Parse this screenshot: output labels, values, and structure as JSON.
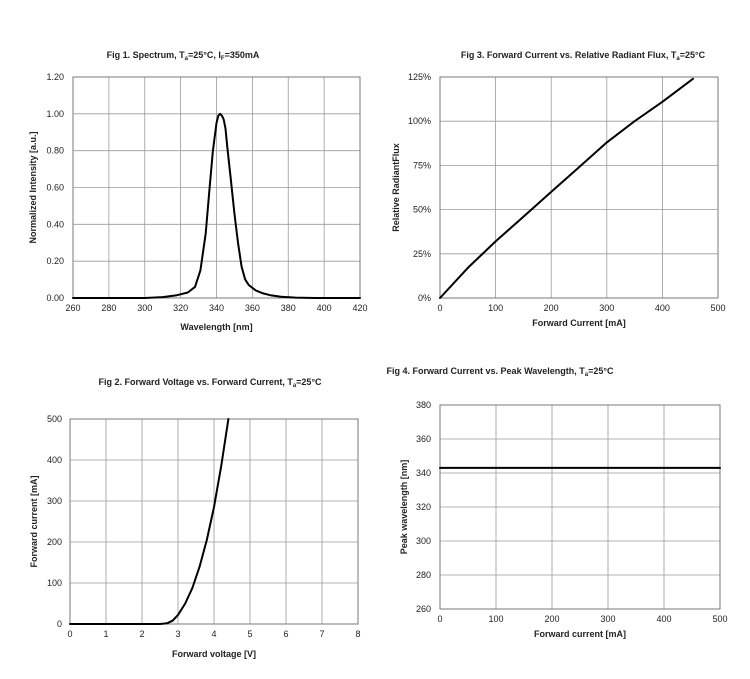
{
  "chart_data": [
    {
      "id": "fig1",
      "type": "line",
      "title": "Fig 1. Spectrum, Ta=25°C, IF=350mA",
      "title_parts": [
        "Fig 1. Spectrum, T",
        "a",
        "=25°C, I",
        "F",
        "=350mA"
      ],
      "xlabel": "Wavelength [nm]",
      "ylabel": "Normalized Intensity [a.u.]",
      "xlim": [
        260,
        420
      ],
      "ylim": [
        0,
        1.2
      ],
      "x_ticks": [
        260,
        280,
        300,
        320,
        340,
        360,
        380,
        400,
        420
      ],
      "y_ticks": [
        0,
        0.2,
        0.4,
        0.6,
        0.8,
        1.0,
        1.2
      ],
      "x_tick_labels": [
        "260",
        "280",
        "300",
        "320",
        "340",
        "360",
        "380",
        "400",
        "420"
      ],
      "y_tick_labels": [
        "0.00",
        "0.20",
        "0.40",
        "0.60",
        "0.80",
        "1.00",
        "1.20"
      ],
      "series": [
        {
          "name": "Spectrum",
          "x": [
            260,
            300,
            310,
            318,
            324,
            328,
            331,
            334,
            336,
            338,
            340,
            341,
            342,
            343,
            344,
            345,
            346,
            348,
            350,
            352,
            354,
            356,
            358,
            362,
            366,
            370,
            376,
            384,
            395,
            420
          ],
          "y": [
            0,
            0,
            0.005,
            0.015,
            0.03,
            0.06,
            0.15,
            0.35,
            0.58,
            0.8,
            0.95,
            0.99,
            1.0,
            0.99,
            0.97,
            0.92,
            0.82,
            0.64,
            0.46,
            0.3,
            0.17,
            0.1,
            0.07,
            0.04,
            0.025,
            0.015,
            0.007,
            0.002,
            0,
            0
          ]
        }
      ]
    },
    {
      "id": "fig3",
      "type": "line",
      "title": "Fig 3. Forward Current vs. Relative Radiant Flux, Ta=25°C",
      "title_parts": [
        "Fig 3. Forward Current vs. Relative Radiant Flux, T",
        "a",
        "=25°C"
      ],
      "xlabel": "Forward Current [mA]",
      "ylabel": "Relative RadiantFlux",
      "xlim": [
        0,
        500
      ],
      "ylim": [
        0,
        125
      ],
      "x_ticks": [
        0,
        100,
        200,
        300,
        400,
        500
      ],
      "y_ticks": [
        0,
        25,
        50,
        75,
        100,
        125
      ],
      "x_tick_labels": [
        "0",
        "100",
        "200",
        "300",
        "400",
        "500"
      ],
      "y_tick_labels": [
        "0%",
        "25%",
        "50%",
        "75%",
        "100%",
        "125%"
      ],
      "series": [
        {
          "name": "Relative Radiant Flux",
          "x": [
            0,
            50,
            100,
            150,
            200,
            250,
            300,
            350,
            400,
            455
          ],
          "y": [
            0,
            17,
            32,
            46,
            60,
            74,
            88,
            100,
            111,
            124
          ]
        }
      ]
    },
    {
      "id": "fig2",
      "type": "line",
      "title": "Fig 2. Forward Voltage vs. Forward Current, Ta=25°C",
      "title_parts": [
        "Fig 2. Forward Voltage vs. Forward Current, T",
        "a",
        "=25°C"
      ],
      "xlabel": "Forward voltage [V]",
      "ylabel": "Forward current [mA]",
      "xlim": [
        0,
        8
      ],
      "ylim": [
        0,
        500
      ],
      "x_ticks": [
        0,
        1,
        2,
        3,
        4,
        5,
        6,
        7,
        8
      ],
      "y_ticks": [
        0,
        100,
        200,
        300,
        400,
        500
      ],
      "x_tick_labels": [
        "0",
        "1",
        "2",
        "3",
        "4",
        "5",
        "6",
        "7",
        "8"
      ],
      "y_tick_labels": [
        "0",
        "100",
        "200",
        "300",
        "400",
        "500"
      ],
      "series": [
        {
          "name": "Forward current",
          "x": [
            0,
            2.5,
            2.7,
            2.85,
            3.0,
            3.2,
            3.4,
            3.6,
            3.8,
            4.0,
            4.2,
            4.4
          ],
          "y": [
            0,
            0,
            2,
            8,
            22,
            50,
            88,
            140,
            205,
            285,
            385,
            500
          ]
        }
      ]
    },
    {
      "id": "fig4",
      "type": "line",
      "title": "Fig 4. Forward Current vs. Peak Wavelength, Ta=25°C",
      "title_parts": [
        "Fig 4. Forward Current vs. Peak Wavelength, T",
        "a",
        "=25°C"
      ],
      "xlabel": "Forward current [mA]",
      "ylabel": "Peak wavelength [nm]",
      "xlim": [
        0,
        500
      ],
      "ylim": [
        260,
        380
      ],
      "x_ticks": [
        0,
        100,
        200,
        300,
        400,
        500
      ],
      "y_ticks": [
        260,
        280,
        300,
        320,
        340,
        360,
        380
      ],
      "x_tick_labels": [
        "0",
        "100",
        "200",
        "300",
        "400",
        "500"
      ],
      "y_tick_labels": [
        "260",
        "280",
        "300",
        "320",
        "340",
        "360",
        "380"
      ],
      "series": [
        {
          "name": "Peak wavelength",
          "x": [
            0,
            500
          ],
          "y": [
            343,
            343
          ]
        }
      ]
    }
  ]
}
